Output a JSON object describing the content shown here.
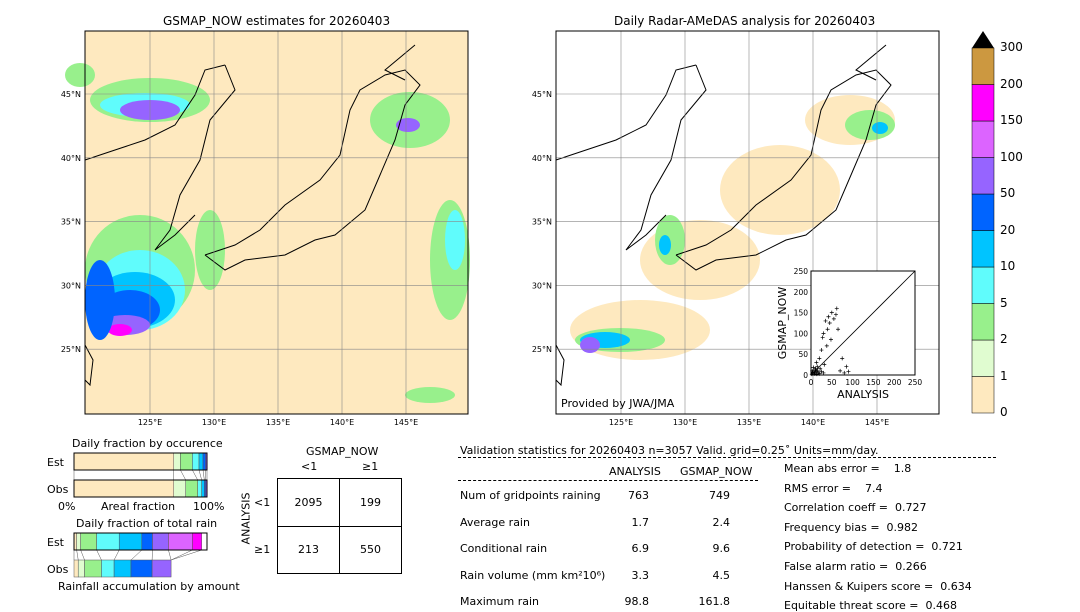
{
  "left_map": {
    "title": "GSMAP_NOW estimates for 20260403"
  },
  "right_map": {
    "title": "Daily Radar-AMeDAS analysis for 20260403",
    "credit": "Provided by JWA/JMA"
  },
  "lat_labels": [
    "45°N",
    "40°N",
    "35°N",
    "30°N",
    "25°N"
  ],
  "lon_labels": [
    "125°E",
    "130°E",
    "135°E",
    "140°E",
    "145°E"
  ],
  "colorbar": {
    "ticks": [
      "0",
      "1",
      "2",
      "5",
      "10",
      "20",
      "50",
      "100",
      "150",
      "200",
      "300"
    ],
    "colors": [
      "#fee9bf",
      "#e0fcd0",
      "#98f08c",
      "#60fcfc",
      "#00c4ff",
      "#0064ff",
      "#9664ff",
      "#dc64ff",
      "#ff00ff",
      "#cc9840"
    ],
    "over": "#000000"
  },
  "scatter": {
    "xlabel": "ANALYSIS",
    "ylabel": "GSMAP_NOW",
    "ticks": [
      "0",
      "50",
      "100",
      "150",
      "200",
      "250"
    ],
    "points": [
      [
        5,
        5
      ],
      [
        8,
        3
      ],
      [
        10,
        12
      ],
      [
        12,
        8
      ],
      [
        15,
        20
      ],
      [
        18,
        5
      ],
      [
        20,
        40
      ],
      [
        22,
        15
      ],
      [
        25,
        60
      ],
      [
        28,
        90
      ],
      [
        30,
        100
      ],
      [
        32,
        25
      ],
      [
        35,
        130
      ],
      [
        38,
        70
      ],
      [
        40,
        110
      ],
      [
        42,
        140
      ],
      [
        45,
        125
      ],
      [
        48,
        85
      ],
      [
        50,
        150
      ],
      [
        55,
        135
      ],
      [
        60,
        145
      ],
      [
        62,
        160
      ],
      [
        65,
        110
      ],
      [
        70,
        10
      ],
      [
        75,
        40
      ],
      [
        80,
        5
      ],
      [
        85,
        20
      ],
      [
        90,
        8
      ],
      [
        3,
        10
      ],
      [
        6,
        18
      ],
      [
        9,
        6
      ],
      [
        14,
        2
      ],
      [
        16,
        10
      ],
      [
        20,
        3
      ],
      [
        25,
        8
      ],
      [
        30,
        5
      ],
      [
        2,
        2
      ],
      [
        4,
        7
      ],
      [
        11,
        15
      ],
      [
        13,
        30
      ]
    ]
  },
  "occurrence": {
    "title": "Daily fraction by occurence",
    "est_label": "Est",
    "obs_label": "Obs",
    "x_left": "0%",
    "x_mid": "Areal fraction",
    "x_right": "100%",
    "est": [
      0.75,
      0.05,
      0.09,
      0.05,
      0.03,
      0.02,
      0.01
    ],
    "obs": [
      0.75,
      0.09,
      0.09,
      0.03,
      0.02,
      0.01,
      0.01
    ]
  },
  "total_rain": {
    "title": "Daily fraction of total rain",
    "est_label": "Est",
    "obs_label": "Obs",
    "footer": "Rainfall accumulation by amount",
    "est": [
      0.02,
      0.03,
      0.12,
      0.17,
      0.17,
      0.08,
      0.12,
      0.18,
      0.07
    ],
    "obs": [
      0.02,
      0.03,
      0.08,
      0.06,
      0.08,
      0.1,
      0.09,
      0,
      0
    ],
    "obs_total": 0.73
  },
  "contingency": {
    "col_title": "GSMAP_NOW",
    "row_title": "ANALYSIS",
    "col_labels": [
      "<1",
      "≥1"
    ],
    "row_labels": [
      "<1",
      "≥1"
    ],
    "cells": [
      [
        "2095",
        "199"
      ],
      [
        "213",
        "550"
      ]
    ]
  },
  "stats": {
    "header": "Validation statistics for 20260403  n=3057 Valid. grid=0.25˚ Units=mm/day.",
    "col_analysis": "ANALYSIS",
    "col_gsmap": "GSMAP_NOW",
    "rows": [
      {
        "label": "Num of gridpoints raining",
        "a": "763",
        "g": "749"
      },
      {
        "label": "Average rain",
        "a": "1.7",
        "g": "2.4"
      },
      {
        "label": "Conditional rain",
        "a": "6.9",
        "g": "9.6"
      },
      {
        "label": "Rain volume (mm km²10⁶)",
        "a": "3.3",
        "g": "4.5"
      },
      {
        "label": "Maximum rain",
        "a": "98.8",
        "g": "161.8"
      }
    ],
    "scores": [
      "Mean abs error =    1.8",
      "RMS error =    7.4",
      "Correlation coeff =  0.727",
      "Frequency bias =  0.982",
      "Probability of detection =  0.721",
      "False alarm ratio =  0.266",
      "Hanssen & Kuipers score =  0.634",
      "Equitable threat score =  0.468"
    ]
  }
}
